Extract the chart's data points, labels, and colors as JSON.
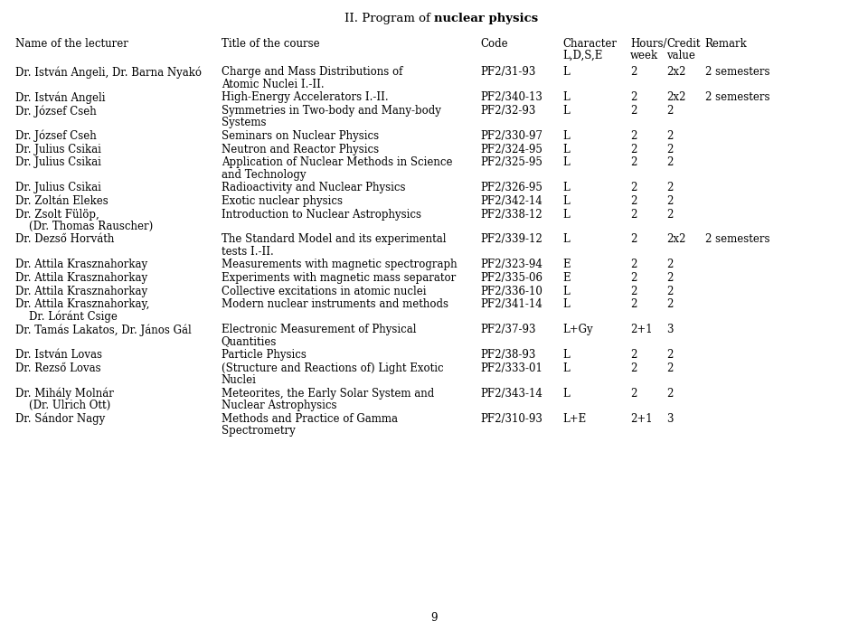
{
  "title_plain": "II. Program of ",
  "title_bold": "nuclear physics",
  "background_color": "#ffffff",
  "text_color": "#000000",
  "font_size": 8.5,
  "page_number": "9",
  "col_x": {
    "lecturer": 0.018,
    "title": 0.255,
    "code": 0.553,
    "char": 0.648,
    "hours": 0.726,
    "credit": 0.768,
    "remark": 0.812
  },
  "header": {
    "col1": "Name of the lecturer",
    "col2": "Title of the course",
    "col3": "Code",
    "col4_1": "Character",
    "col4_2": "L,D,S,E",
    "col5_1": "Hours/",
    "col5_2": "week",
    "col6_1": "Credit",
    "col6_2": "value",
    "col7": "Remark"
  },
  "rows": [
    {
      "lecturer": [
        "Dr. István Angeli, Dr. Barna Nyakó"
      ],
      "title": [
        "Charge and Mass Distributions of",
        "Atomic Nuclei I.-II."
      ],
      "code": "PF2/31-93",
      "char": "L",
      "hours": "2",
      "credit": "2x2",
      "remark": "2 semesters"
    },
    {
      "lecturer": [
        "Dr. István Angeli"
      ],
      "title": [
        "High-Energy Accelerators I.-II."
      ],
      "code": "PF2/340-13",
      "char": "L",
      "hours": "2",
      "credit": "2x2",
      "remark": "2 semesters"
    },
    {
      "lecturer": [
        "Dr. József Cseh"
      ],
      "title": [
        "Symmetries in Two-body and Many-body",
        "Systems"
      ],
      "code": "PF2/32-93",
      "char": "L",
      "hours": "2",
      "credit": "2",
      "remark": ""
    },
    {
      "lecturer": [
        "Dr. József Cseh"
      ],
      "title": [
        "Seminars on Nuclear Physics"
      ],
      "code": "PF2/330-97",
      "char": "L",
      "hours": "2",
      "credit": "2",
      "remark": ""
    },
    {
      "lecturer": [
        "Dr. Julius Csikai"
      ],
      "title": [
        "Neutron and Reactor Physics"
      ],
      "code": "PF2/324-95",
      "char": "L",
      "hours": "2",
      "credit": "2",
      "remark": ""
    },
    {
      "lecturer": [
        "Dr. Julius Csikai"
      ],
      "title": [
        "Application of Nuclear Methods in Science",
        "and Technology"
      ],
      "code": "PF2/325-95",
      "char": "L",
      "hours": "2",
      "credit": "2",
      "remark": ""
    },
    {
      "lecturer": [
        "Dr. Julius Csikai"
      ],
      "title": [
        "Radioactivity and Nuclear Physics"
      ],
      "code": "PF2/326-95",
      "char": "L",
      "hours": "2",
      "credit": "2",
      "remark": ""
    },
    {
      "lecturer": [
        "Dr. Zoltán Elekes"
      ],
      "title": [
        "Exotic nuclear physics"
      ],
      "code": "PF2/342-14",
      "char": "L",
      "hours": "2",
      "credit": "2",
      "remark": ""
    },
    {
      "lecturer": [
        "Dr. Zsolt Fülöp,",
        "    (Dr. Thomas Rauscher)"
      ],
      "title": [
        "Introduction to Nuclear Astrophysics"
      ],
      "code": "PF2/338-12",
      "char": "L",
      "hours": "2",
      "credit": "2",
      "remark": ""
    },
    {
      "lecturer": [
        "Dr. Dezső Horváth"
      ],
      "title": [
        "The Standard Model and its experimental",
        "tests I.-II."
      ],
      "code": "PF2/339-12",
      "char": "L",
      "hours": "2",
      "credit": "2x2",
      "remark": "2 semesters"
    },
    {
      "lecturer": [
        "Dr. Attila Krasznahorkay"
      ],
      "title": [
        "Measurements with magnetic spectrograph"
      ],
      "code": "PF2/323-94",
      "char": "E",
      "hours": "2",
      "credit": "2",
      "remark": ""
    },
    {
      "lecturer": [
        "Dr. Attila Krasznahorkay"
      ],
      "title": [
        "Experiments with magnetic mass separator"
      ],
      "code": "PF2/335-06",
      "char": "E",
      "hours": "2",
      "credit": "2",
      "remark": ""
    },
    {
      "lecturer": [
        "Dr. Attila Krasznahorkay"
      ],
      "title": [
        "Collective excitations in atomic nuclei"
      ],
      "code": "PF2/336-10",
      "char": "L",
      "hours": "2",
      "credit": "2",
      "remark": ""
    },
    {
      "lecturer": [
        "Dr. Attila Krasznahorkay,",
        "    Dr. Lóránt Csige"
      ],
      "title": [
        "Modern nuclear instruments and methods"
      ],
      "code": "PF2/341-14",
      "char": "L",
      "hours": "2",
      "credit": "2",
      "remark": ""
    },
    {
      "lecturer": [
        "Dr. Tamás Lakatos, Dr. János Gál"
      ],
      "title": [
        "Electronic Measurement of Physical",
        "Quantities"
      ],
      "code": "PF2/37-93",
      "char": "L+Gy",
      "hours": "2+1",
      "credit": "3",
      "remark": ""
    },
    {
      "lecturer": [
        "Dr. István Lovas"
      ],
      "title": [
        "Particle Physics"
      ],
      "code": "PF2/38-93",
      "char": "L",
      "hours": "2",
      "credit": "2",
      "remark": ""
    },
    {
      "lecturer": [
        "Dr. Rezső Lovas"
      ],
      "title": [
        "(Structure and Reactions of) Light Exotic",
        "Nuclei"
      ],
      "code": "PF2/333-01",
      "char": "L",
      "hours": "2",
      "credit": "2",
      "remark": ""
    },
    {
      "lecturer": [
        "Dr. Mihály Molnár",
        "    (Dr. Ulrich Ott)"
      ],
      "title": [
        "Meteorites, the Early Solar System and",
        "Nuclear Astrophysics"
      ],
      "code": "PF2/343-14",
      "char": "L",
      "hours": "2",
      "credit": "2",
      "remark": ""
    },
    {
      "lecturer": [
        "Dr. Sándor Nagy"
      ],
      "title": [
        "Methods and Practice of Gamma",
        "Spectrometry"
      ],
      "code": "PF2/310-93",
      "char": "L+E",
      "hours": "2+1",
      "credit": "3",
      "remark": ""
    }
  ]
}
